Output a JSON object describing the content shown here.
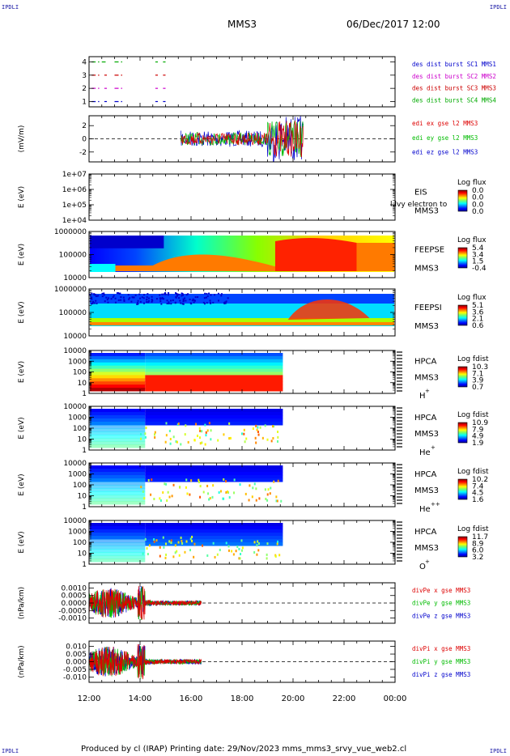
{
  "corners": {
    "tl": "IPDLI",
    "tr": "IPDLI",
    "bl": "IPDLI",
    "br": "IPDLI"
  },
  "title": {
    "mission": "MMS3",
    "datetime": "06/Dec/2017 12:00"
  },
  "footer": "Produced by cl (IRAP)   Printing date: 29/Nov/2023   mms_mms3_srvy_vue_web2.cl",
  "colors": {
    "mms1": "#0000cc",
    "mms2": "#cc00cc",
    "mms3": "#cc0000",
    "mms4": "#00aa00",
    "x_comp": "#dd0000",
    "y_comp": "#00bb00",
    "z_comp": "#0000cc"
  },
  "chart_data": {
    "type": "heatmap",
    "x_tick_labels": [
      "12:00",
      "14:00",
      "16:00",
      "18:00",
      "20:00",
      "22:00",
      "00:00"
    ],
    "x_range_hours": [
      12,
      24
    ],
    "panels": [
      {
        "id": "burst",
        "type": "scatter",
        "y_ticks": [
          "1",
          "2",
          "3",
          "4"
        ],
        "ylim": [
          0.6,
          4.4
        ],
        "legend": [
          {
            "text": "des dist burst SC1 MMS1",
            "color": "#0000cc"
          },
          {
            "text": "des dist burst SC2 MMS2",
            "color": "#cc00cc"
          },
          {
            "text": "des dist burst SC3 MMS3",
            "color": "#cc0000"
          },
          {
            "text": "des dist burst SC4 MMS4",
            "color": "#00aa00"
          }
        ],
        "series": [
          {
            "y": 4,
            "color": "#00aa00",
            "segments": [
              [
                12.1,
                12.4
              ],
              [
                12.5,
                12.65
              ],
              [
                13.0,
                13.3
              ],
              [
                14.6,
                14.7
              ],
              [
                14.9,
                15.0
              ]
            ]
          },
          {
            "y": 3,
            "color": "#cc0000",
            "segments": [
              [
                12.1,
                12.4
              ],
              [
                12.6,
                12.7
              ],
              [
                13.0,
                13.3
              ],
              [
                14.6,
                14.7
              ],
              [
                14.9,
                15.0
              ]
            ]
          },
          {
            "y": 2,
            "color": "#cc00cc",
            "segments": [
              [
                12.1,
                12.4
              ],
              [
                12.6,
                12.7
              ],
              [
                13.0,
                13.3
              ],
              [
                14.6,
                14.7
              ],
              [
                14.9,
                15.0
              ]
            ]
          },
          {
            "y": 1,
            "color": "#0000cc",
            "segments": [
              [
                12.1,
                12.4
              ],
              [
                12.6,
                12.7
              ],
              [
                13.0,
                13.3
              ],
              [
                14.6,
                14.7
              ],
              [
                14.9,
                15.0
              ]
            ]
          }
        ]
      },
      {
        "id": "edi",
        "type": "line",
        "ylabel": "(mV/m)",
        "y_ticks": [
          "2",
          "0",
          "-2"
        ],
        "ylim": [
          -3.5,
          3.5
        ],
        "legend": [
          {
            "text": "edi ex gse l2 MMS3",
            "color": "#dd0000"
          },
          {
            "text": "edi ey gse l2 MMS3",
            "color": "#00bb00"
          },
          {
            "text": "edi ez gse l2 MMS3",
            "color": "#0000cc"
          }
        ],
        "data_range_hours": [
          15.6,
          20.4
        ]
      },
      {
        "id": "eis",
        "type": "heatmap",
        "ylabel": "E (eV)",
        "y_ticks": [
          "1e+07",
          "1e+06",
          "1e+05",
          "1e+04"
        ],
        "instrument": "EIS",
        "sc": "MMS3",
        "overlay_text": "l:lvy electron to",
        "colorbar": {
          "title": "Log flux",
          "ticks": [
            "0.0",
            "0.0",
            "0.0",
            "0.0"
          ]
        }
      },
      {
        "id": "feepse",
        "type": "heatmap",
        "ylabel": "E (eV)",
        "y_ticks": [
          "1000000",
          "100000",
          "10000"
        ],
        "instrument": "FEEPSE",
        "sc": "MMS3",
        "colorbar": {
          "title": "Log flux",
          "ticks": [
            "5.4",
            "3.4",
            "1.5",
            "-0.4"
          ]
        }
      },
      {
        "id": "feepsi",
        "type": "heatmap",
        "ylabel": "E (eV)",
        "y_ticks": [
          "1000000",
          "100000",
          "10000"
        ],
        "instrument": "FEEPSI",
        "sc": "MMS3",
        "colorbar": {
          "title": "Log flux",
          "ticks": [
            "5.1",
            "3.6",
            "2.1",
            "0.6"
          ]
        }
      },
      {
        "id": "hpca_h",
        "type": "heatmap",
        "ylabel": "E (eV)",
        "y_ticks": [
          "10000",
          "1000",
          "100",
          "10",
          "1"
        ],
        "instrument": "HPCA",
        "sc": "MMS3",
        "species": "H",
        "charge": "+",
        "colorbar": {
          "title": "Log fdist",
          "ticks": [
            "10.3",
            "7.1",
            "3.9",
            "0.7"
          ]
        }
      },
      {
        "id": "hpca_he",
        "type": "heatmap",
        "ylabel": "E (eV)",
        "y_ticks": [
          "10000",
          "1000",
          "100",
          "10",
          "1"
        ],
        "instrument": "HPCA",
        "sc": "MMS3",
        "species": "He",
        "charge": "+",
        "colorbar": {
          "title": "Log fdist",
          "ticks": [
            "10.9",
            "7.9",
            "4.9",
            "1.9"
          ]
        }
      },
      {
        "id": "hpca_he2",
        "type": "heatmap",
        "ylabel": "E (eV)",
        "y_ticks": [
          "10000",
          "1000",
          "100",
          "10",
          "1"
        ],
        "instrument": "HPCA",
        "sc": "MMS3",
        "species": "He",
        "charge": "++",
        "colorbar": {
          "title": "Log fdist",
          "ticks": [
            "10.2",
            "7.4",
            "4.5",
            "1.6"
          ]
        }
      },
      {
        "id": "hpca_o",
        "type": "heatmap",
        "ylabel": "E (eV)",
        "y_ticks": [
          "10000",
          "1000",
          "100",
          "10",
          "1"
        ],
        "instrument": "HPCA",
        "sc": "MMS3",
        "species": "O",
        "charge": "+",
        "colorbar": {
          "title": "Log fdist",
          "ticks": [
            "11.7",
            "8.9",
            "6.0",
            "3.2"
          ]
        }
      },
      {
        "id": "divpe",
        "type": "line",
        "ylabel": "(nPa/km)",
        "y_ticks": [
          "0.0010",
          "0.0005",
          "0.0000",
          "-0.0005",
          "-0.0010"
        ],
        "ylim": [
          -0.00135,
          0.00135
        ],
        "legend": [
          {
            "text": "divPe x gse MMS3",
            "color": "#dd0000"
          },
          {
            "text": "divPe y gse MMS3",
            "color": "#00bb00"
          },
          {
            "text": "divPe z gse MMS3",
            "color": "#0000cc"
          }
        ],
        "data_range_hours": [
          12.0,
          16.4
        ]
      },
      {
        "id": "divpi",
        "type": "line",
        "ylabel": "(nPa/km)",
        "y_ticks": [
          "0.010",
          "0.005",
          "0.000",
          "-0.005",
          "-0.010"
        ],
        "ylim": [
          -0.0135,
          0.0135
        ],
        "legend": [
          {
            "text": "divPi x gse MMS3",
            "color": "#dd0000"
          },
          {
            "text": "divPi y gse MMS3",
            "color": "#00bb00"
          },
          {
            "text": "divPi z gse MMS3",
            "color": "#0000cc"
          }
        ],
        "data_range_hours": [
          12.0,
          16.4
        ]
      }
    ]
  }
}
